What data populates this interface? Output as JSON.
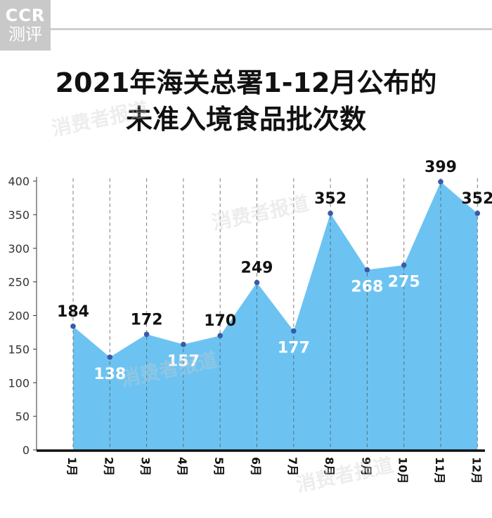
{
  "logo": {
    "brand": "CCR",
    "sub": "测评"
  },
  "watermark": "消费者报道",
  "chart_data": {
    "type": "area",
    "title_lines": [
      "2021年海关总署1-12月公布的",
      "未准入境食品批次数"
    ],
    "categories": [
      "1月",
      "2月",
      "3月",
      "4月",
      "5月",
      "6月",
      "7月",
      "8月",
      "9月",
      "10月",
      "11月",
      "12月"
    ],
    "values": [
      184,
      138,
      172,
      157,
      170,
      249,
      177,
      352,
      268,
      275,
      399,
      352
    ],
    "label_position": [
      "above",
      "below",
      "above",
      "below",
      "above",
      "above",
      "below",
      "above",
      "below",
      "below",
      "above",
      "above"
    ],
    "yticks": [
      0,
      50,
      100,
      150,
      200,
      250,
      300,
      350,
      400
    ],
    "ylim": [
      0,
      400
    ],
    "grid": "vertical-dashed",
    "colors": {
      "fill": "#6cc3f2",
      "marker": "#3a5aa8",
      "label_dark": "#111111",
      "label_light": "#ffffff",
      "axis": "#111111",
      "tick": "#333333"
    }
  }
}
